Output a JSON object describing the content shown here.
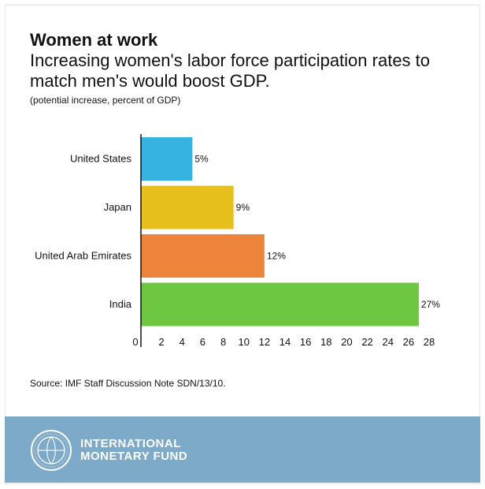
{
  "header": {
    "title": "Women at work",
    "subtitle": "Increasing women's labor force participation rates to match men's would boost GDP.",
    "unit_note": "(potential increase, percent of GDP)"
  },
  "source": "Source: IMF Staff Discussion Note SDN/13/10.",
  "footer": {
    "org_line1": "INTERNATIONAL",
    "org_line2": "MONETARY FUND",
    "logo_icon": "imf-seal-icon"
  },
  "chart_data": {
    "type": "bar",
    "orientation": "horizontal",
    "categories": [
      "United States",
      "Japan",
      "United Arab Emirates",
      "India"
    ],
    "values": [
      5,
      9,
      12,
      27
    ],
    "data_labels": [
      "5%",
      "9%",
      "12%",
      "27%"
    ],
    "colors": [
      "#36b3e0",
      "#e7c01e",
      "#ec843c",
      "#6dc740"
    ],
    "xlim": [
      0,
      28
    ],
    "xticks": [
      0,
      2,
      4,
      6,
      8,
      10,
      12,
      14,
      16,
      18,
      20,
      22,
      24,
      26,
      28
    ],
    "grid": false,
    "legend": "none"
  }
}
